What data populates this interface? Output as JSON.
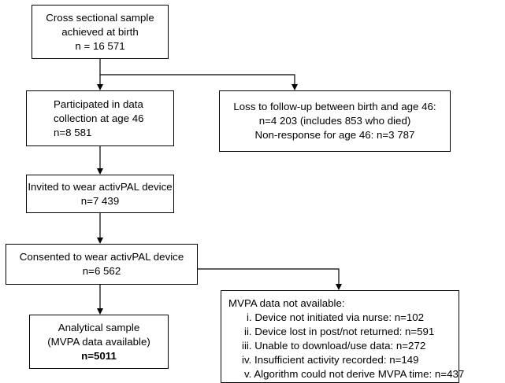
{
  "boxes": {
    "birth": {
      "lines": [
        "Cross sectional sample",
        "achieved at birth",
        "n = 16 571"
      ]
    },
    "age46": {
      "lines": [
        "Participated in data",
        "collection at age 46",
        "n=8 581"
      ]
    },
    "loss": {
      "lines": [
        "Loss to follow-up between birth and age 46:",
        "n=4 203 (includes 853 who died)",
        "Non-response for age 46: n=3 787"
      ]
    },
    "invited": {
      "lines": [
        "Invited to wear activPAL device",
        "n=7 439"
      ]
    },
    "consented": {
      "lines": [
        "Consented to wear activPAL device",
        "n=6 562"
      ]
    },
    "analytical": {
      "lines": [
        "Analytical sample",
        "(MVPA data available)"
      ],
      "n": "n=5011"
    },
    "mvpa": {
      "title": "MVPA data not available:",
      "reasons": [
        "i. Device not initiated via nurse: n=102",
        "ii. Device lost in post/not returned: n=591",
        "iii. Unable to download/use data: n=272",
        "iv. Insufficient activity recorded: n=149",
        "v. Algorithm could not derive MVPA time: n=437"
      ]
    }
  }
}
